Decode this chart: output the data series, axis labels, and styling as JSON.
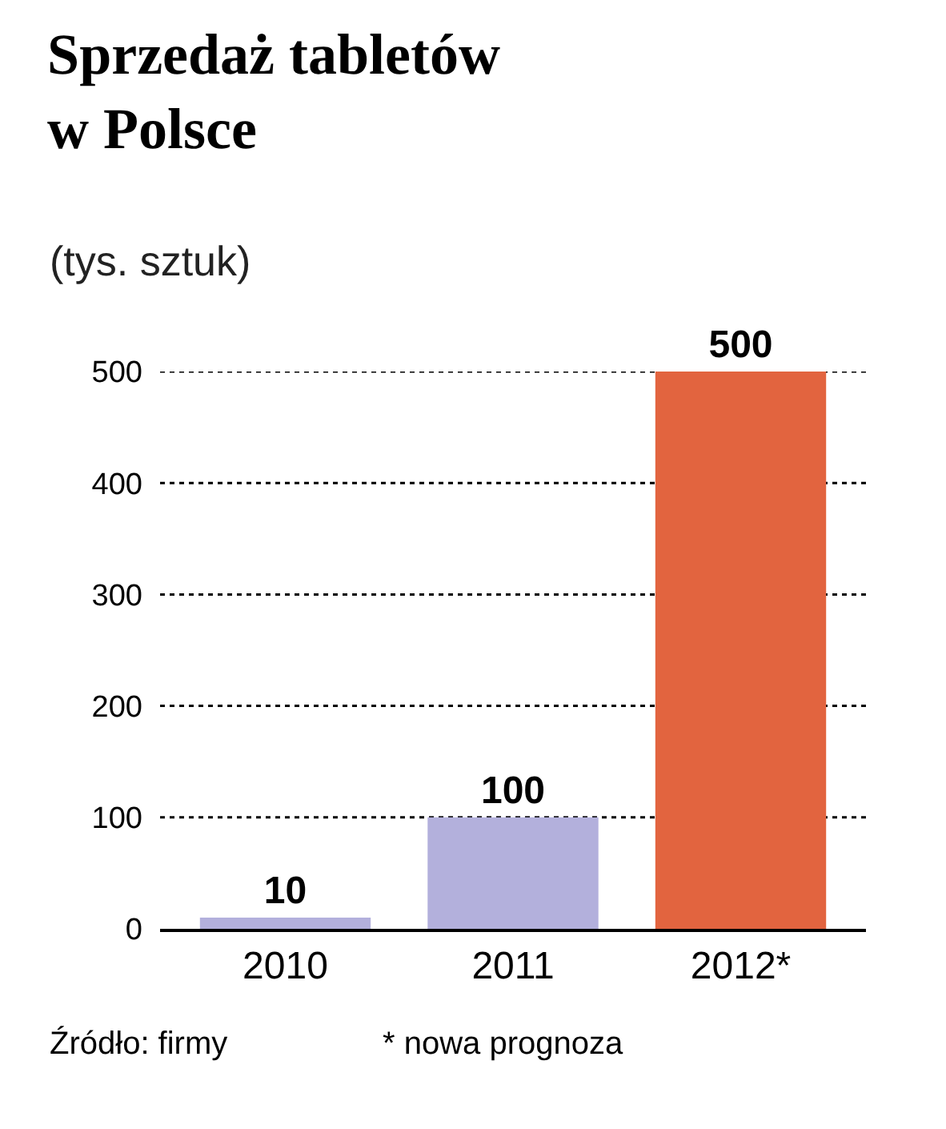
{
  "chart_data": {
    "type": "bar",
    "title": "Sprzedaż tabletów\nw Polsce",
    "subtitle": "(tys. sztuk)",
    "categories": [
      "2010",
      "2011",
      "2012*"
    ],
    "values": [
      10,
      100,
      500
    ],
    "colors": [
      "#b3b0dc",
      "#b3b0dc",
      "#e2643f"
    ],
    "ylim": [
      0,
      500
    ],
    "yticks": [
      0,
      100,
      200,
      300,
      400,
      500
    ],
    "grid": "y",
    "data_labels": true,
    "annotations": [
      "Źródło: firmy",
      "* nowa prognoza"
    ]
  }
}
